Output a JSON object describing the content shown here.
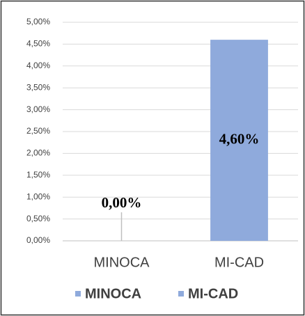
{
  "chart_data": {
    "type": "bar",
    "categories": [
      "MINOCA",
      "MI-CAD"
    ],
    "series": [
      {
        "name": "MINOCA",
        "color": "#8faadc",
        "values": [
          0,
          null
        ],
        "value_labels": [
          "0,00%",
          null
        ]
      },
      {
        "name": "MI-CAD",
        "color": "#8faadc",
        "values": [
          null,
          4.6
        ],
        "value_labels": [
          null,
          "4,60%"
        ]
      }
    ],
    "ylim": [
      0,
      5
    ],
    "yticks": [
      {
        "value": 0,
        "label": "0,00%"
      },
      {
        "value": 0.5,
        "label": "0,50%"
      },
      {
        "value": 1,
        "label": "1,00%"
      },
      {
        "value": 1.5,
        "label": "1,50%"
      },
      {
        "value": 2,
        "label": "2,00%"
      },
      {
        "value": 2.5,
        "label": "2,50%"
      },
      {
        "value": 3,
        "label": "3,00%"
      },
      {
        "value": 3.5,
        "label": "3,50%"
      },
      {
        "value": 4,
        "label": "4,00%"
      },
      {
        "value": 4.5,
        "label": "4,50%"
      },
      {
        "value": 5,
        "label": "5,00%"
      }
    ],
    "grid": true,
    "legend": "bottom"
  }
}
